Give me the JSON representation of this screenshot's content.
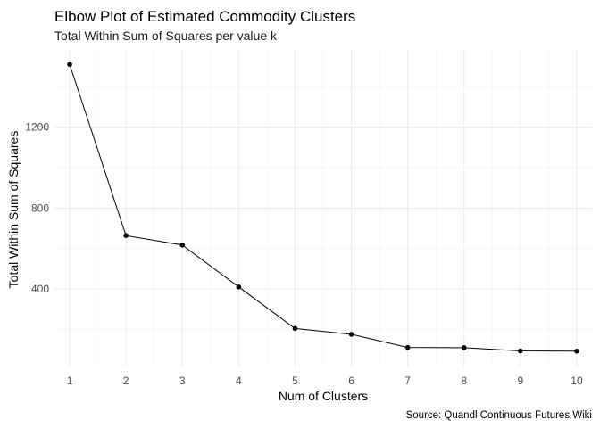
{
  "chart_data": {
    "type": "line",
    "title": "Elbow Plot of Estimated Commodity Clusters",
    "subtitle": "Total Within Sum of Squares per value k",
    "xlabel": "Num of Clusters",
    "ylabel": "Total Within Sum of Squares",
    "caption": "Source: Quandl Continuous Futures Wiki",
    "x": [
      1,
      2,
      3,
      4,
      5,
      6,
      7,
      8,
      9,
      10
    ],
    "series": [
      {
        "values": [
          1510,
          664,
          617,
          410,
          205,
          176,
          111,
          110,
          94,
          93
        ]
      }
    ],
    "xlim": [
      0.73,
      10.27
    ],
    "ylim": [
      17,
      1586
    ],
    "x_ticks": [
      "1",
      "2",
      "3",
      "4",
      "5",
      "6",
      "7",
      "8",
      "9",
      "10"
    ],
    "y_ticks": [
      400,
      800,
      1200
    ],
    "y_tick_labels": [
      "400",
      "800",
      "1200"
    ],
    "y_minor_ticks": [
      200,
      600,
      1000,
      1400
    ],
    "grid": true,
    "legend": "none",
    "colors": {
      "line": "#000000",
      "points": "#000000",
      "grid": "#ebebeb"
    }
  }
}
